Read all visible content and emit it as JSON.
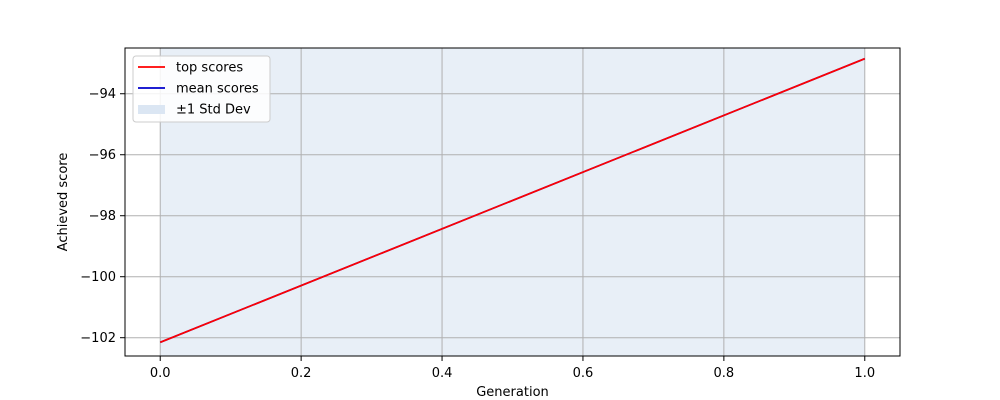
{
  "chart_data": {
    "type": "line",
    "title": "",
    "xlabel": "Generation",
    "ylabel": "Achieved score",
    "xlim": [
      -0.05,
      1.05
    ],
    "ylim": [
      -102.6,
      -92.5
    ],
    "xticks": [
      0.0,
      0.2,
      0.4,
      0.6,
      0.8,
      1.0
    ],
    "xtick_labels": [
      "0.0",
      "0.2",
      "0.4",
      "0.6",
      "0.8",
      "1.0"
    ],
    "yticks": [
      -102,
      -100,
      -98,
      -96,
      -94
    ],
    "ytick_labels": [
      "−102",
      "−100",
      "−98",
      "−96",
      "−94"
    ],
    "grid": true,
    "legend_position": "top-left",
    "series": [
      {
        "name": "top scores",
        "color": "#ff0000",
        "x": [
          0,
          1
        ],
        "y": [
          -102.15,
          -92.85
        ]
      },
      {
        "name": "mean scores",
        "color": "#0000cc",
        "x": [
          0,
          1
        ],
        "y": [
          -102.15,
          -92.85
        ]
      }
    ],
    "band": {
      "name": "±1 Std Dev",
      "color": "#dbe6f3",
      "x": [
        0,
        1
      ],
      "lower": [
        -102.6,
        -102.6
      ],
      "upper": [
        -92.5,
        -92.5
      ]
    }
  }
}
